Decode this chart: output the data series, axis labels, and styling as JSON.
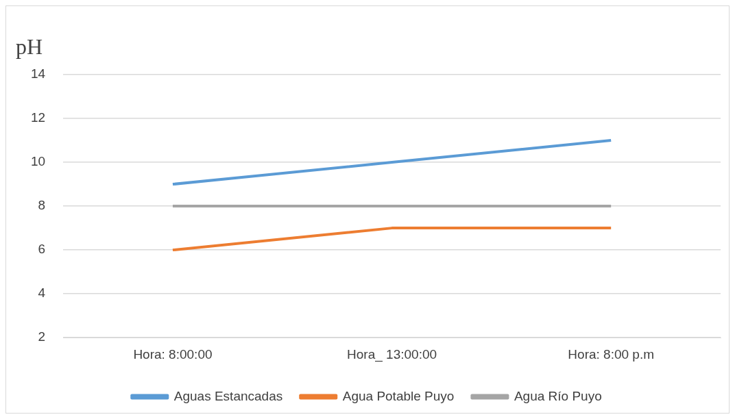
{
  "chart_data": {
    "type": "line",
    "ylabel": "pH",
    "categories": [
      "Hora: 8:00:00",
      "Hora_ 13:00:00",
      "Hora: 8:00 p.m"
    ],
    "series": [
      {
        "name": "Aguas Estancadas",
        "color": "#5b9bd5",
        "values": [
          9,
          10,
          11
        ]
      },
      {
        "name": "Agua Potable Puyo",
        "color": "#ed7d31",
        "values": [
          6,
          7,
          7
        ]
      },
      {
        "name": "Agua Río Puyo",
        "color": "#a5a5a5",
        "values": [
          8,
          8,
          8
        ]
      }
    ],
    "ylim": [
      2,
      14
    ],
    "yticks": [
      2,
      4,
      6,
      8,
      10,
      12,
      14
    ],
    "grid": "y",
    "legend": "bottom",
    "marker": "none",
    "line_style": "solid"
  }
}
